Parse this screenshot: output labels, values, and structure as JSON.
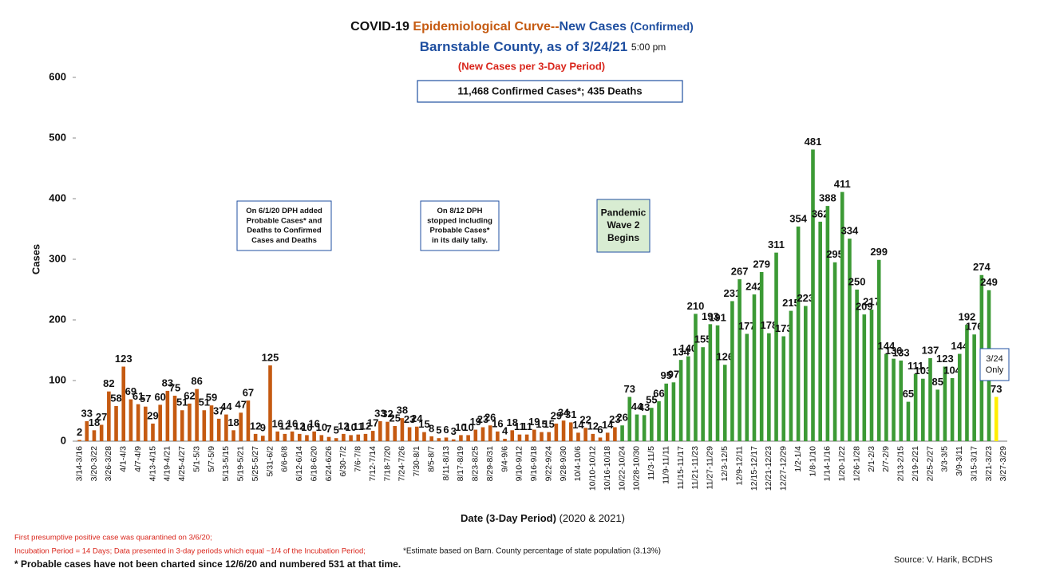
{
  "chart_data": {
    "type": "bar",
    "title": [
      "COVID-19",
      "Epidemiological Curve--",
      "New Cases",
      "(Confirmed)"
    ],
    "subtitle": [
      "Barnstable County, as of 3/24/21",
      "5:00 pm"
    ],
    "subtitle2": "(New Cases per 3-Day Period)",
    "summary": "11,468 Confirmed Cases*; 435 Deaths",
    "y_label": "Cases",
    "x_label": [
      "Date (3-Day Period)",
      "(2020 & 2021)"
    ],
    "annotations": [
      {
        "lines": [
          "On 6/1/20 DPH added",
          "Probable Cases* and",
          "Deaths to Confirmed",
          "Cases and Deaths"
        ]
      },
      {
        "lines": [
          "On 8/12 DPH",
          "stopped including",
          "Probable Cases*",
          "in its daily tally."
        ]
      },
      {
        "lines": [
          "Pandemic",
          "Wave 2",
          "Begins"
        ]
      },
      {
        "lines": [
          "3/24",
          "Only"
        ]
      }
    ],
    "footnotes": [
      "First presumptive positive case was quarantined on 3/6/20;",
      "Incubation Period = 14 Days; Data presented in 3-day periods which equal ~1/4 of the Incubation Period;",
      "*Estimate based on Barn. County percentage of state population (3.13%)",
      "* Probable cases have not been charted since 12/6/20 and numbered 531 at that time."
    ],
    "source": "Source: V. Harik, BCDHS",
    "categories": [
      "3/14-3/16",
      null,
      "3/20-3/22",
      null,
      "3/26-3/28",
      null,
      "4/1-4/3",
      null,
      "4/7-4/9",
      null,
      "4/13-4/15",
      null,
      "4/19-4/21",
      null,
      "4/25-4/27",
      null,
      "5/1-5/3",
      null,
      "5/7-5/9",
      null,
      "5/13-5/15",
      null,
      "5/19-5/21",
      null,
      "5/25-5/27",
      null,
      "5/31-6/2",
      null,
      "6/6-6/8",
      null,
      "6/12-6/14",
      null,
      "6/18-6/20",
      null,
      "6/24-6/26",
      null,
      "6/30-7/2",
      null,
      "7/6-7/8",
      null,
      "7/12-7/14",
      null,
      "7/18-7/20",
      null,
      "7/24-7/26",
      null,
      "7/30-8/1",
      null,
      "8/5-8/7",
      null,
      "8/11-8/13",
      null,
      "8/17-8/19",
      null,
      "8/23-8/25",
      null,
      "8/29-8/31",
      null,
      "9/4-9/6",
      null,
      "9/10-9/12",
      null,
      "9/16-9/18",
      null,
      "9/22-9/24",
      null,
      "9/28-9/30",
      null,
      "10/4-10/6",
      null,
      "10/10-10/12",
      null,
      "10/16-10/18",
      null,
      "10/22-10/24",
      null,
      "10/28-10/30",
      null,
      "11/3-11/5",
      null,
      "11/9-11/11",
      null,
      "11/15-11/17",
      null,
      "11/21-11/23",
      null,
      "11/27-11/29",
      null,
      "12/3-12/5",
      null,
      "12/9-12/11",
      null,
      "12/15-12/17",
      null,
      "12/21-12/23",
      null,
      "12/27-12/29",
      null,
      "1/2-1/4",
      null,
      "1/8-1/10",
      null,
      "1/14-1/16",
      null,
      "1/20-1/22",
      null,
      "1/26-1/28",
      null,
      "2/1-2/3",
      null,
      "2/7-2/9",
      null,
      "2/13-2/15",
      null,
      "2/19-2/21",
      null,
      "2/25-2/27",
      null,
      "3/3-3/5",
      null,
      "3/9-3/11",
      null,
      "3/15-3/17",
      null,
      "3/21-3/23",
      null,
      "3/27-3/29"
    ],
    "values": [
      2,
      33,
      18,
      27,
      82,
      58,
      123,
      69,
      61,
      57,
      29,
      60,
      83,
      75,
      51,
      62,
      86,
      51,
      59,
      37,
      44,
      18,
      47,
      67,
      12,
      9,
      125,
      16,
      12,
      16,
      12,
      10,
      16,
      10,
      7,
      5,
      12,
      10,
      11,
      12,
      17,
      33,
      32,
      25,
      38,
      23,
      24,
      15,
      8,
      5,
      6,
      3,
      10,
      10,
      19,
      23,
      26,
      16,
      4,
      18,
      11,
      11,
      19,
      15,
      15,
      29,
      34,
      31,
      14,
      22,
      12,
      6,
      14,
      23,
      26,
      73,
      44,
      43,
      55,
      66,
      95,
      97,
      134,
      140,
      210,
      155,
      193,
      191,
      126,
      231,
      267,
      177,
      242,
      279,
      178,
      311,
      173,
      215,
      354,
      223,
      481,
      362,
      388,
      295,
      411,
      334,
      250,
      209,
      217,
      299,
      144,
      136,
      133,
      65,
      111,
      103,
      137,
      85,
      123,
      104,
      144,
      192,
      176,
      274,
      249,
      73,
      null
    ],
    "colors": [
      "#c55a11",
      "#c55a11",
      "#c55a11",
      "#c55a11",
      "#c55a11",
      "#c55a11",
      "#c55a11",
      "#c55a11",
      "#c55a11",
      "#c55a11",
      "#c55a11",
      "#c55a11",
      "#c55a11",
      "#c55a11",
      "#c55a11",
      "#c55a11",
      "#c55a11",
      "#c55a11",
      "#c55a11",
      "#c55a11",
      "#c55a11",
      "#c55a11",
      "#c55a11",
      "#c55a11",
      "#c55a11",
      "#c55a11",
      "#c55a11",
      "#c55a11",
      "#c55a11",
      "#c55a11",
      "#c55a11",
      "#c55a11",
      "#c55a11",
      "#c55a11",
      "#c55a11",
      "#c55a11",
      "#c55a11",
      "#c55a11",
      "#c55a11",
      "#c55a11",
      "#c55a11",
      "#c55a11",
      "#c55a11",
      "#c55a11",
      "#c55a11",
      "#c55a11",
      "#c55a11",
      "#c55a11",
      "#c55a11",
      "#c55a11",
      "#c55a11",
      "#c55a11",
      "#c55a11",
      "#c55a11",
      "#c55a11",
      "#c55a11",
      "#c55a11",
      "#c55a11",
      "#c55a11",
      "#c55a11",
      "#c55a11",
      "#c55a11",
      "#c55a11",
      "#c55a11",
      "#c55a11",
      "#c55a11",
      "#c55a11",
      "#c55a11",
      "#c55a11",
      "#c55a11",
      "#c55a11",
      "#c55a11",
      "#c55a11",
      "#c55a11",
      "#3c9a35",
      "#3c9a35",
      "#3c9a35",
      "#3c9a35",
      "#3c9a35",
      "#3c9a35",
      "#3c9a35",
      "#3c9a35",
      "#3c9a35",
      "#3c9a35",
      "#3c9a35",
      "#3c9a35",
      "#3c9a35",
      "#3c9a35",
      "#3c9a35",
      "#3c9a35",
      "#3c9a35",
      "#3c9a35",
      "#3c9a35",
      "#3c9a35",
      "#3c9a35",
      "#3c9a35",
      "#3c9a35",
      "#3c9a35",
      "#3c9a35",
      "#3c9a35",
      "#3c9a35",
      "#3c9a35",
      "#3c9a35",
      "#3c9a35",
      "#3c9a35",
      "#3c9a35",
      "#3c9a35",
      "#3c9a35",
      "#3c9a35",
      "#3c9a35",
      "#3c9a35",
      "#3c9a35",
      "#3c9a35",
      "#3c9a35",
      "#3c9a35",
      "#3c9a35",
      "#3c9a35",
      "#3c9a35",
      "#3c9a35",
      "#3c9a35",
      "#3c9a35",
      "#3c9a35",
      "#3c9a35",
      "#3c9a35",
      "#3c9a35",
      "#ffee00",
      null
    ],
    "ylim": [
      0,
      600
    ],
    "yticks": [
      0,
      100,
      200,
      300,
      400,
      500,
      600
    ],
    "grid": false
  }
}
